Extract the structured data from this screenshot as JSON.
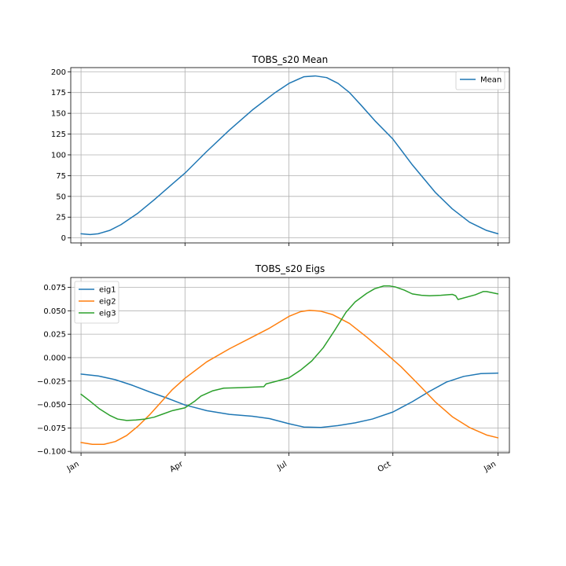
{
  "chart_data": [
    {
      "type": "line",
      "title": "TOBS_s20 Mean",
      "x_unit": "day_of_year",
      "xlim": [
        -9,
        375
      ],
      "ylim": [
        -6,
        205
      ],
      "yticks": [
        0,
        25,
        50,
        75,
        100,
        125,
        150,
        175,
        200
      ],
      "ytick_labels": [
        "0",
        "25",
        "50",
        "75",
        "100",
        "125",
        "150",
        "175",
        "200"
      ],
      "xticks": [
        0,
        91,
        182,
        273,
        365
      ],
      "xtick_labels": [
        "",
        "",
        "",
        "",
        ""
      ],
      "grid": true,
      "legend": "top-right",
      "series": [
        {
          "name": "Mean",
          "color": "#1f77b4",
          "x": [
            0,
            8,
            15,
            25,
            35,
            50,
            65,
            80,
            91,
            110,
            130,
            150,
            170,
            182,
            195,
            205,
            215,
            225,
            235,
            245,
            258,
            273,
            290,
            310,
            325,
            340,
            355,
            365
          ],
          "y": [
            5,
            4,
            5,
            9,
            16,
            30,
            47,
            65,
            78,
            104,
            130,
            154,
            175,
            186,
            194,
            195,
            193,
            186,
            175,
            160,
            140,
            119,
            88,
            55,
            35,
            19,
            9,
            5
          ]
        }
      ]
    },
    {
      "type": "line",
      "title": "TOBS_s20 Eigs",
      "x_unit": "day_of_year",
      "xlim": [
        -9,
        375
      ],
      "ylim": [
        -0.1015,
        0.0855
      ],
      "yticks": [
        -0.1,
        -0.075,
        -0.05,
        -0.025,
        0.0,
        0.025,
        0.05,
        0.075
      ],
      "ytick_labels": [
        "−0.100",
        "−0.075",
        "−0.050",
        "−0.025",
        "0.000",
        "0.025",
        "0.050",
        "0.075"
      ],
      "xticks": [
        0,
        91,
        182,
        273,
        365
      ],
      "xtick_labels": [
        "Jan",
        "Apr",
        "Jul",
        "Oct",
        "Jan"
      ],
      "grid": true,
      "legend": "top-left",
      "series": [
        {
          "name": "eig1",
          "color": "#1f77b4",
          "x": [
            0,
            15,
            30,
            45,
            60,
            75,
            91,
            110,
            130,
            150,
            165,
            182,
            195,
            210,
            225,
            240,
            255,
            273,
            290,
            305,
            320,
            335,
            350,
            365
          ],
          "y": [
            -0.0175,
            -0.0195,
            -0.0235,
            -0.0295,
            -0.0365,
            -0.043,
            -0.0505,
            -0.0565,
            -0.0605,
            -0.0625,
            -0.065,
            -0.0705,
            -0.074,
            -0.0745,
            -0.0725,
            -0.0695,
            -0.0655,
            -0.058,
            -0.047,
            -0.036,
            -0.026,
            -0.02,
            -0.017,
            -0.0165
          ]
        },
        {
          "name": "eig2",
          "color": "#ff7f0e",
          "x": [
            0,
            10,
            20,
            30,
            40,
            50,
            60,
            70,
            80,
            91,
            110,
            130,
            150,
            165,
            182,
            192,
            200,
            210,
            220,
            235,
            250,
            265,
            280,
            295,
            310,
            325,
            340,
            355,
            365
          ],
          "y": [
            -0.0905,
            -0.0925,
            -0.0925,
            -0.0895,
            -0.083,
            -0.073,
            -0.061,
            -0.0475,
            -0.034,
            -0.022,
            -0.0045,
            0.0095,
            0.022,
            0.0315,
            0.044,
            0.049,
            0.0505,
            0.0495,
            0.046,
            0.0365,
            0.022,
            0.0065,
            -0.0095,
            -0.028,
            -0.047,
            -0.063,
            -0.0745,
            -0.0825,
            -0.0855
          ]
        },
        {
          "name": "eig3",
          "color": "#2ca02c",
          "x": [
            0,
            8,
            16,
            25,
            32,
            40,
            48,
            56,
            64,
            72,
            80,
            91,
            100,
            105,
            115,
            125,
            140,
            160,
            162,
            170,
            182,
            192,
            202,
            212,
            222,
            232,
            240,
            250,
            257,
            265,
            270,
            275,
            283,
            290,
            298,
            305,
            315,
            325,
            328,
            330,
            345,
            352,
            355,
            365
          ],
          "y": [
            -0.039,
            -0.0465,
            -0.0545,
            -0.0615,
            -0.0655,
            -0.067,
            -0.0665,
            -0.0655,
            -0.0635,
            -0.06,
            -0.0565,
            -0.0535,
            -0.046,
            -0.041,
            -0.0355,
            -0.0325,
            -0.032,
            -0.031,
            -0.028,
            -0.0255,
            -0.0215,
            -0.0135,
            -0.0035,
            0.0105,
            0.029,
            0.0485,
            0.0595,
            0.0685,
            0.0735,
            0.0765,
            0.0765,
            0.0755,
            0.072,
            0.068,
            0.0665,
            0.066,
            0.0665,
            0.0675,
            0.066,
            0.062,
            0.067,
            0.0705,
            0.0705,
            0.068
          ]
        }
      ]
    }
  ]
}
